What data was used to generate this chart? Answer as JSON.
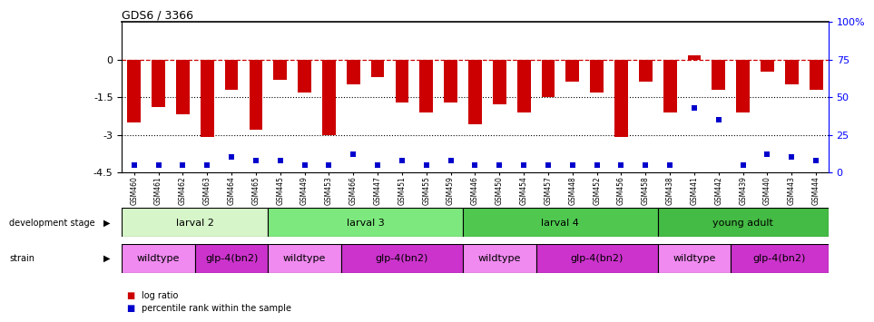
{
  "title": "GDS6 / 3366",
  "samples": [
    "GSM460",
    "GSM461",
    "GSM462",
    "GSM463",
    "GSM464",
    "GSM465",
    "GSM445",
    "GSM449",
    "GSM453",
    "GSM466",
    "GSM447",
    "GSM451",
    "GSM455",
    "GSM459",
    "GSM446",
    "GSM450",
    "GSM454",
    "GSM457",
    "GSM448",
    "GSM452",
    "GSM456",
    "GSM458",
    "GSM438",
    "GSM441",
    "GSM442",
    "GSM439",
    "GSM440",
    "GSM443",
    "GSM444"
  ],
  "log_ratio": [
    -2.5,
    -1.9,
    -2.2,
    -3.1,
    -1.2,
    -2.8,
    -0.8,
    -1.3,
    -3.0,
    -1.0,
    -0.7,
    -1.7,
    -2.1,
    -1.7,
    -2.6,
    -1.8,
    -2.1,
    -1.5,
    -0.9,
    -1.3,
    -3.1,
    -0.9,
    -2.1,
    0.15,
    -1.2,
    -2.1,
    -0.5,
    -1.0,
    -1.2
  ],
  "percentile": [
    5,
    5,
    5,
    5,
    10,
    8,
    8,
    5,
    5,
    12,
    5,
    8,
    5,
    8,
    5,
    5,
    5,
    5,
    5,
    5,
    5,
    5,
    5,
    43,
    35,
    5,
    12,
    10,
    8
  ],
  "dev_stages": [
    {
      "label": "larval 2",
      "start": 0,
      "end": 6,
      "color": "#d6f5c9"
    },
    {
      "label": "larval 3",
      "start": 6,
      "end": 14,
      "color": "#7de87d"
    },
    {
      "label": "larval 4",
      "start": 14,
      "end": 22,
      "color": "#50c850"
    },
    {
      "label": "young adult",
      "start": 22,
      "end": 29,
      "color": "#44bb44"
    }
  ],
  "strains": [
    {
      "label": "wildtype",
      "start": 0,
      "end": 3,
      "color": "#f08af0"
    },
    {
      "label": "glp-4(bn2)",
      "start": 3,
      "end": 6,
      "color": "#cc33cc"
    },
    {
      "label": "wildtype",
      "start": 6,
      "end": 9,
      "color": "#f08af0"
    },
    {
      "label": "glp-4(bn2)",
      "start": 9,
      "end": 14,
      "color": "#cc33cc"
    },
    {
      "label": "wildtype",
      "start": 14,
      "end": 17,
      "color": "#f08af0"
    },
    {
      "label": "glp-4(bn2)",
      "start": 17,
      "end": 22,
      "color": "#cc33cc"
    },
    {
      "label": "wildtype",
      "start": 22,
      "end": 25,
      "color": "#f08af0"
    },
    {
      "label": "glp-4(bn2)",
      "start": 25,
      "end": 29,
      "color": "#cc33cc"
    }
  ],
  "ylim": [
    -4.5,
    1.5
  ],
  "y_ticks_left": [
    0,
    -1.5,
    -3.0,
    -4.5
  ],
  "y_ticks_right_vals": [
    0,
    25,
    50,
    75,
    100
  ],
  "bar_color": "#cc0000",
  "dot_color": "#0000cc",
  "hline_color": "#cc0000",
  "dotline_y": [
    -1.5,
    -3.0
  ],
  "bg_color": "#ffffff"
}
